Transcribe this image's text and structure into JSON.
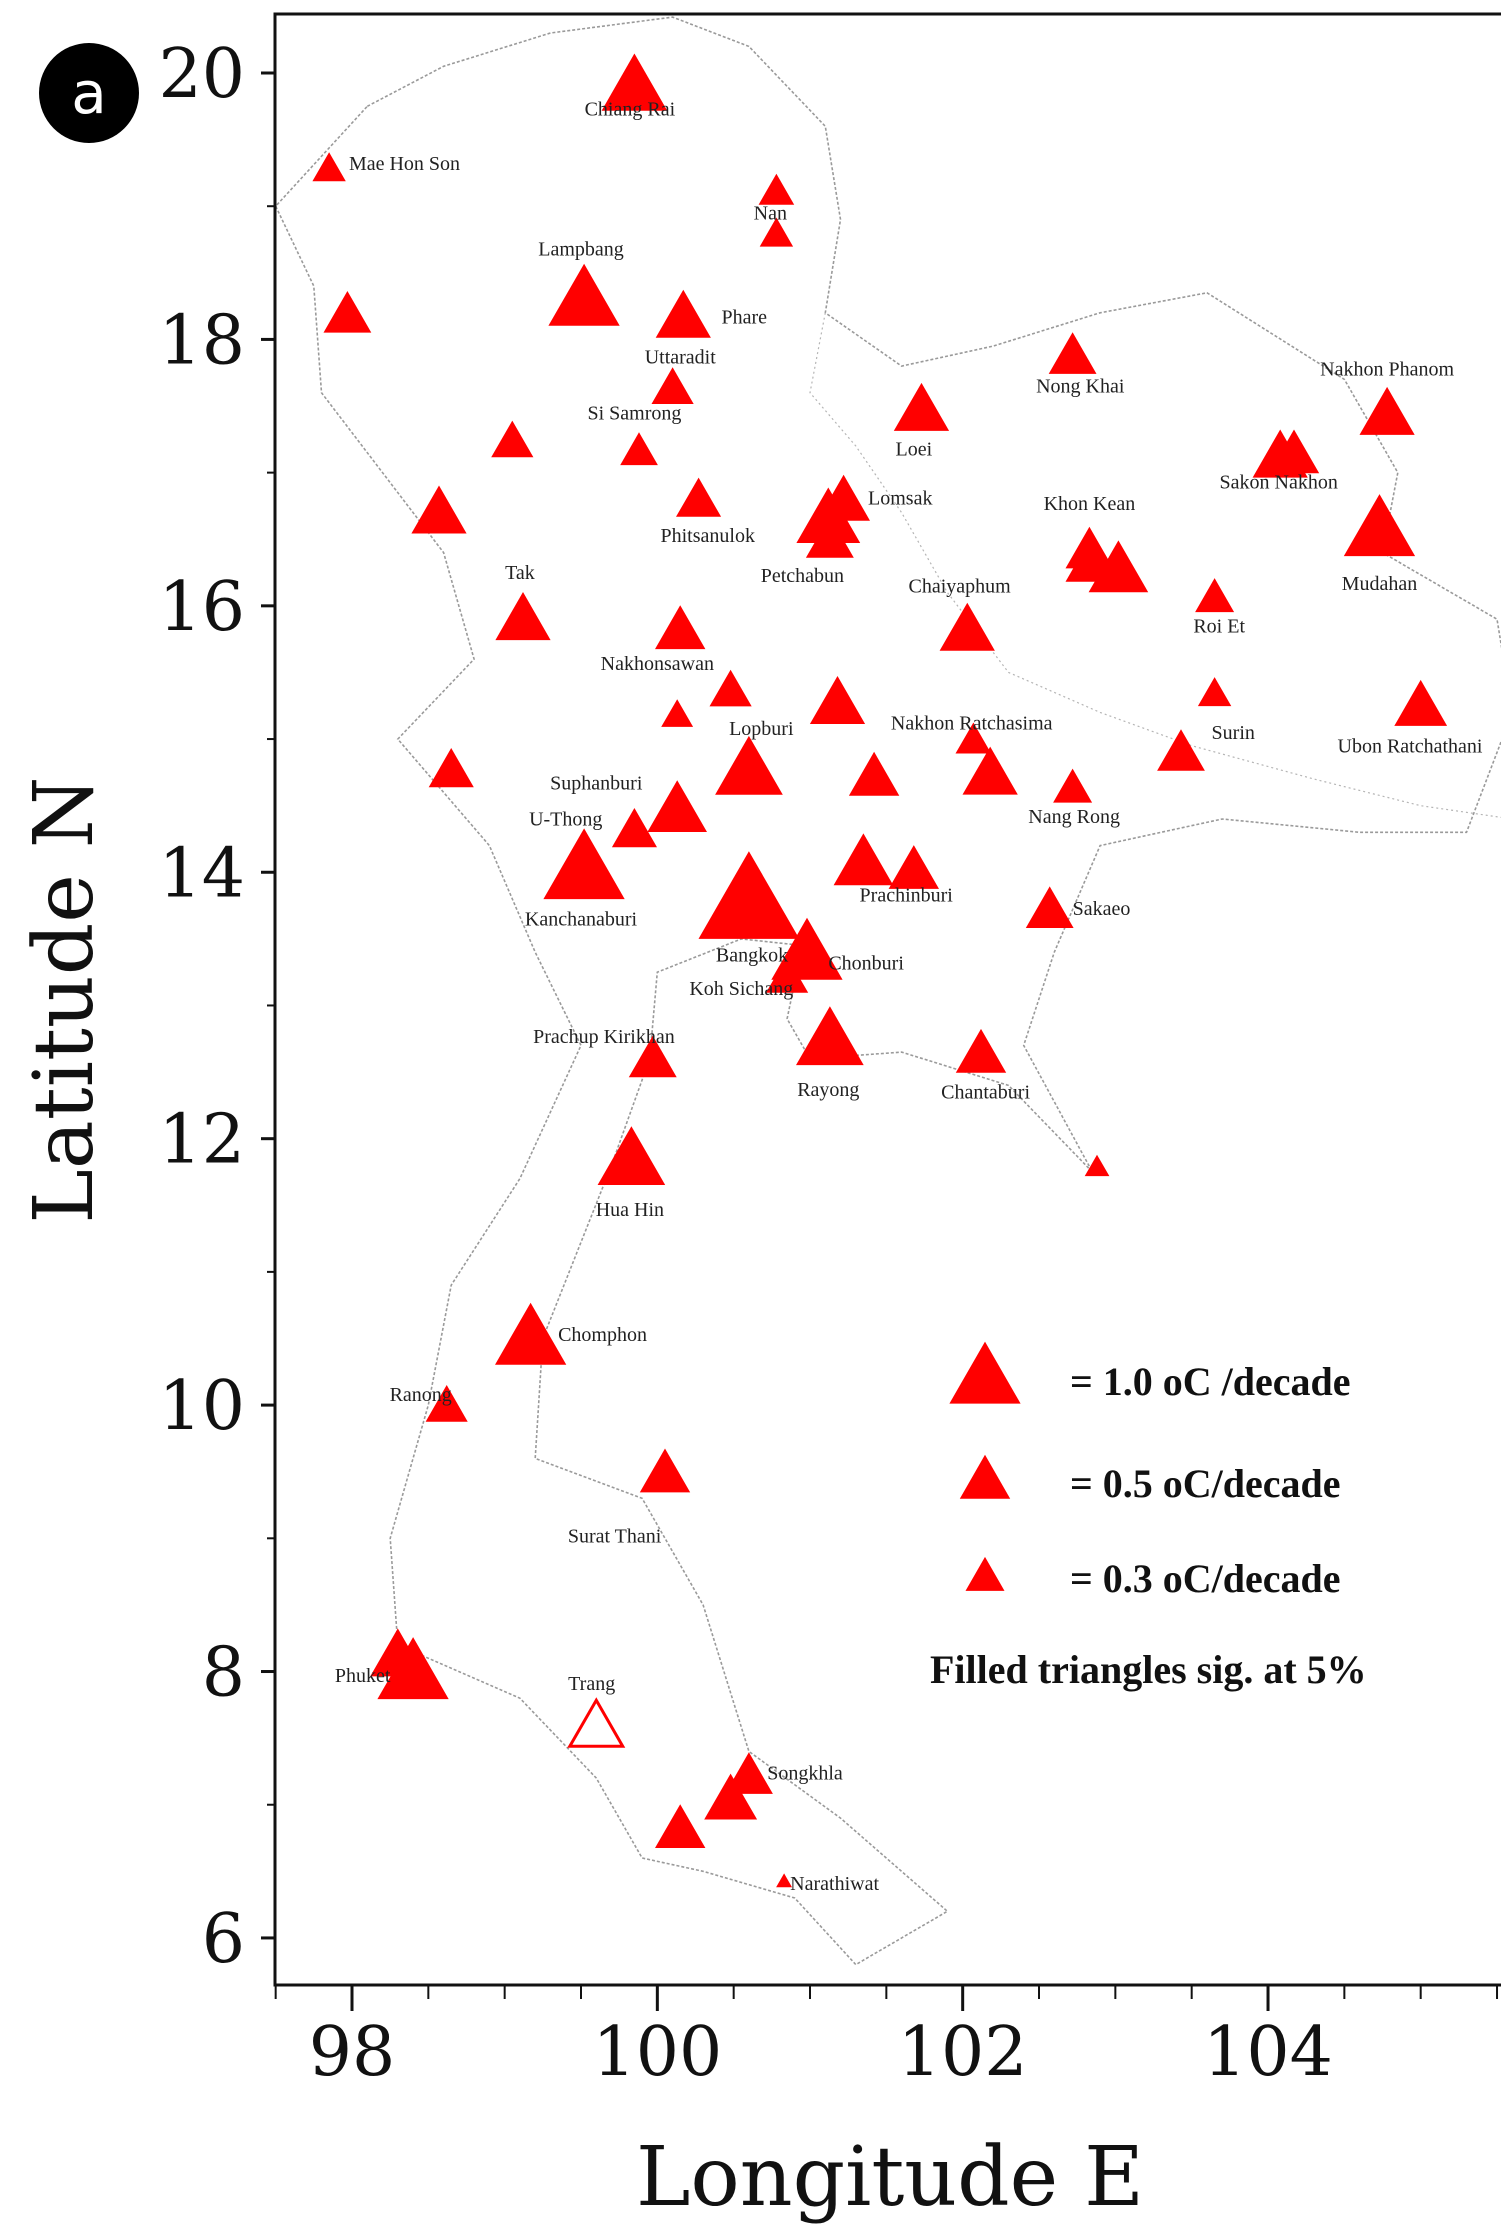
{
  "panel_label": "a",
  "colors": {
    "marker": "#ff0000",
    "coast": "#9a9a9a",
    "axis": "#111111"
  },
  "chart_data": {
    "type": "scatter",
    "subtype": "map_station_trends",
    "xlabel": "Longitude E",
    "ylabel": "Latitude N",
    "xlim": [
      97.4,
      105.8
    ],
    "ylim": [
      5.75,
      20.45
    ],
    "x_ticks": [
      98,
      100,
      102,
      104
    ],
    "y_ticks": [
      6,
      8,
      10,
      12,
      14,
      16,
      18,
      20
    ],
    "x_tick_labels": [
      "98",
      "100",
      "102",
      "104"
    ],
    "y_tick_labels": [
      "6",
      "8",
      "10",
      "12",
      "14",
      "16",
      "18",
      "20"
    ],
    "legend": {
      "placement": "lower-right",
      "entries": [
        {
          "label": "= 1.0 oC /decade",
          "trend": 1.0
        },
        {
          "label": "= 0.5 oC/decade",
          "trend": 0.5
        },
        {
          "label": "= 0.3 oC/decade",
          "trend": 0.3
        }
      ],
      "note": "Filled triangles sig. at 5%"
    },
    "stations": [
      {
        "lon": 99.85,
        "lat": 19.88,
        "trend": 0.85,
        "sig": true
      },
      {
        "lon": 97.85,
        "lat": 19.27,
        "trend": 0.22,
        "sig": true
      },
      {
        "lon": 100.78,
        "lat": 19.1,
        "trend": 0.25,
        "sig": true
      },
      {
        "lon": 100.78,
        "lat": 18.78,
        "trend": 0.22,
        "sig": true
      },
      {
        "lon": 99.52,
        "lat": 18.28,
        "trend": 1.0,
        "sig": true
      },
      {
        "lon": 97.97,
        "lat": 18.17,
        "trend": 0.45,
        "sig": true
      },
      {
        "lon": 100.17,
        "lat": 18.15,
        "trend": 0.6,
        "sig": true
      },
      {
        "lon": 100.1,
        "lat": 17.62,
        "trend": 0.35,
        "sig": true
      },
      {
        "lon": 99.05,
        "lat": 17.22,
        "trend": 0.35,
        "sig": true
      },
      {
        "lon": 99.88,
        "lat": 17.15,
        "trend": 0.28,
        "sig": true
      },
      {
        "lon": 102.72,
        "lat": 17.86,
        "trend": 0.45,
        "sig": true
      },
      {
        "lon": 101.73,
        "lat": 17.45,
        "trend": 0.6,
        "sig": true
      },
      {
        "lon": 104.78,
        "lat": 17.42,
        "trend": 0.6,
        "sig": true
      },
      {
        "lon": 104.08,
        "lat": 17.1,
        "trend": 0.6,
        "sig": true
      },
      {
        "lon": 104.17,
        "lat": 17.12,
        "trend": 0.5,
        "sig": true
      },
      {
        "lon": 98.57,
        "lat": 16.68,
        "trend": 0.6,
        "sig": true
      },
      {
        "lon": 100.27,
        "lat": 16.78,
        "trend": 0.4,
        "sig": true
      },
      {
        "lon": 101.12,
        "lat": 16.63,
        "trend": 0.8,
        "sig": true
      },
      {
        "lon": 101.22,
        "lat": 16.77,
        "trend": 0.55,
        "sig": true
      },
      {
        "lon": 101.13,
        "lat": 16.48,
        "trend": 0.45,
        "sig": true
      },
      {
        "lon": 102.83,
        "lat": 16.4,
        "trend": 0.45,
        "sig": true
      },
      {
        "lon": 102.83,
        "lat": 16.3,
        "trend": 0.45,
        "sig": true
      },
      {
        "lon": 103.02,
        "lat": 16.25,
        "trend": 0.7,
        "sig": true
      },
      {
        "lon": 104.73,
        "lat": 16.55,
        "trend": 1.0,
        "sig": true
      },
      {
        "lon": 103.65,
        "lat": 16.05,
        "trend": 0.3,
        "sig": true
      },
      {
        "lon": 99.12,
        "lat": 15.88,
        "trend": 0.6,
        "sig": true
      },
      {
        "lon": 100.15,
        "lat": 15.8,
        "trend": 0.5,
        "sig": true
      },
      {
        "lon": 102.03,
        "lat": 15.8,
        "trend": 0.6,
        "sig": true
      },
      {
        "lon": 100.48,
        "lat": 15.35,
        "trend": 0.35,
        "sig": true
      },
      {
        "lon": 100.13,
        "lat": 15.17,
        "trend": 0.2,
        "sig": true
      },
      {
        "lon": 101.18,
        "lat": 15.25,
        "trend": 0.6,
        "sig": true
      },
      {
        "lon": 103.65,
        "lat": 15.33,
        "trend": 0.22,
        "sig": true
      },
      {
        "lon": 105.0,
        "lat": 15.23,
        "trend": 0.55,
        "sig": true
      },
      {
        "lon": 102.07,
        "lat": 14.98,
        "trend": 0.25,
        "sig": true
      },
      {
        "lon": 103.43,
        "lat": 14.88,
        "trend": 0.45,
        "sig": true
      },
      {
        "lon": 98.65,
        "lat": 14.75,
        "trend": 0.4,
        "sig": true
      },
      {
        "lon": 100.6,
        "lat": 14.75,
        "trend": 0.9,
        "sig": true
      },
      {
        "lon": 101.42,
        "lat": 14.7,
        "trend": 0.5,
        "sig": true
      },
      {
        "lon": 102.18,
        "lat": 14.72,
        "trend": 0.6,
        "sig": true
      },
      {
        "lon": 102.72,
        "lat": 14.62,
        "trend": 0.3,
        "sig": true
      },
      {
        "lon": 100.13,
        "lat": 14.45,
        "trend": 0.7,
        "sig": true
      },
      {
        "lon": 99.85,
        "lat": 14.3,
        "trend": 0.4,
        "sig": true
      },
      {
        "lon": 99.52,
        "lat": 14.0,
        "trend": 1.3,
        "sig": true
      },
      {
        "lon": 100.6,
        "lat": 13.75,
        "trend": 2.0,
        "sig": true
      },
      {
        "lon": 101.35,
        "lat": 14.05,
        "trend": 0.7,
        "sig": true
      },
      {
        "lon": 101.68,
        "lat": 14.0,
        "trend": 0.5,
        "sig": true
      },
      {
        "lon": 102.57,
        "lat": 13.7,
        "trend": 0.45,
        "sig": true
      },
      {
        "lon": 100.98,
        "lat": 13.37,
        "trend": 1.0,
        "sig": true
      },
      {
        "lon": 100.85,
        "lat": 13.2,
        "trend": 0.35,
        "sig": true
      },
      {
        "lon": 101.13,
        "lat": 12.72,
        "trend": 0.9,
        "sig": true
      },
      {
        "lon": 102.12,
        "lat": 12.62,
        "trend": 0.5,
        "sig": true
      },
      {
        "lon": 99.97,
        "lat": 12.58,
        "trend": 0.45,
        "sig": true
      },
      {
        "lon": 102.88,
        "lat": 11.78,
        "trend": 0.12,
        "sig": true
      },
      {
        "lon": 99.83,
        "lat": 11.82,
        "trend": 0.9,
        "sig": true
      },
      {
        "lon": 99.17,
        "lat": 10.48,
        "trend": 1.0,
        "sig": true
      },
      {
        "lon": 98.62,
        "lat": 9.98,
        "trend": 0.35,
        "sig": true
      },
      {
        "lon": 100.05,
        "lat": 9.47,
        "trend": 0.5,
        "sig": true
      },
      {
        "lon": 98.3,
        "lat": 8.1,
        "trend": 0.6,
        "sig": true
      },
      {
        "lon": 98.4,
        "lat": 7.97,
        "trend": 1.0,
        "sig": true
      },
      {
        "lon": 99.6,
        "lat": 7.57,
        "trend": 0.55,
        "sig": false
      },
      {
        "lon": 100.6,
        "lat": 7.2,
        "trend": 0.45,
        "sig": true
      },
      {
        "lon": 100.48,
        "lat": 7.02,
        "trend": 0.55,
        "sig": true
      },
      {
        "lon": 100.15,
        "lat": 6.8,
        "trend": 0.5,
        "sig": true
      },
      {
        "lon": 100.83,
        "lat": 6.42,
        "trend": 0.05,
        "sig": true
      }
    ],
    "labels": [
      {
        "text": "Chiang Rai",
        "lon": 99.82,
        "lat": 19.68,
        "anchor": "middle"
      },
      {
        "text": "Mae Hon Son",
        "lon": 97.98,
        "lat": 19.27,
        "anchor": "start"
      },
      {
        "text": "Nan",
        "lon": 100.74,
        "lat": 18.9,
        "anchor": "middle"
      },
      {
        "text": "Lampbang",
        "lon": 99.5,
        "lat": 18.63,
        "anchor": "middle"
      },
      {
        "text": "Phare",
        "lon": 100.42,
        "lat": 18.12,
        "anchor": "start"
      },
      {
        "text": "Uttaradit",
        "lon": 100.15,
        "lat": 17.82,
        "anchor": "middle"
      },
      {
        "text": "Nong Khai",
        "lon": 102.77,
        "lat": 17.6,
        "anchor": "middle"
      },
      {
        "text": "Nakhon Phanom",
        "lon": 104.78,
        "lat": 17.73,
        "anchor": "middle"
      },
      {
        "text": "Si Samrong",
        "lon": 99.85,
        "lat": 17.4,
        "anchor": "middle"
      },
      {
        "text": "Loei",
        "lon": 101.68,
        "lat": 17.13,
        "anchor": "middle"
      },
      {
        "text": "Sakon Nakhon",
        "lon": 104.07,
        "lat": 16.88,
        "anchor": "middle"
      },
      {
        "text": "Lomsak",
        "lon": 101.38,
        "lat": 16.76,
        "anchor": "start"
      },
      {
        "text": "Khon Kean",
        "lon": 102.83,
        "lat": 16.72,
        "anchor": "middle"
      },
      {
        "text": "Phitsanulok",
        "lon": 100.33,
        "lat": 16.48,
        "anchor": "middle"
      },
      {
        "text": "Tak",
        "lon": 99.1,
        "lat": 16.2,
        "anchor": "middle"
      },
      {
        "text": "Petchabun",
        "lon": 100.95,
        "lat": 16.18,
        "anchor": "middle"
      },
      {
        "text": "Chaiyaphum",
        "lon": 101.98,
        "lat": 16.1,
        "anchor": "middle"
      },
      {
        "text": "Mudahan",
        "lon": 104.73,
        "lat": 16.12,
        "anchor": "middle"
      },
      {
        "text": "Roi Et",
        "lon": 103.68,
        "lat": 15.8,
        "anchor": "middle"
      },
      {
        "text": "Nakhonsawan",
        "lon": 100.0,
        "lat": 15.52,
        "anchor": "middle"
      },
      {
        "text": "Nakhon Ratchasima",
        "lon": 101.53,
        "lat": 15.07,
        "anchor": "start"
      },
      {
        "text": "Lopburi",
        "lon": 100.47,
        "lat": 15.03,
        "anchor": "start"
      },
      {
        "text": "Surin",
        "lon": 103.63,
        "lat": 15.0,
        "anchor": "start"
      },
      {
        "text": "Ubon Ratchathani",
        "lon": 104.93,
        "lat": 14.9,
        "anchor": "middle"
      },
      {
        "text": "Suphanburi",
        "lon": 99.6,
        "lat": 14.62,
        "anchor": "middle"
      },
      {
        "text": "Nang Rong",
        "lon": 102.73,
        "lat": 14.37,
        "anchor": "middle"
      },
      {
        "text": "U-Thong",
        "lon": 99.4,
        "lat": 14.35,
        "anchor": "middle"
      },
      {
        "text": "Prachinburi",
        "lon": 101.63,
        "lat": 13.78,
        "anchor": "middle"
      },
      {
        "text": "Sakaeo",
        "lon": 102.72,
        "lat": 13.68,
        "anchor": "start"
      },
      {
        "text": "Kanchanaburi",
        "lon": 99.5,
        "lat": 13.6,
        "anchor": "middle"
      },
      {
        "text": "Bangkok",
        "lon": 100.62,
        "lat": 13.33,
        "anchor": "middle"
      },
      {
        "text": "Chonburi",
        "lon": 101.12,
        "lat": 13.27,
        "anchor": "start"
      },
      {
        "text": "Koh Sichang",
        "lon": 100.55,
        "lat": 13.08,
        "anchor": "middle"
      },
      {
        "text": "Prachup Kirikhan",
        "lon": 99.65,
        "lat": 12.72,
        "anchor": "middle"
      },
      {
        "text": "Rayong",
        "lon": 101.12,
        "lat": 12.32,
        "anchor": "middle"
      },
      {
        "text": "Chantaburi",
        "lon": 102.15,
        "lat": 12.3,
        "anchor": "middle"
      },
      {
        "text": "Hua Hin",
        "lon": 99.82,
        "lat": 11.42,
        "anchor": "middle"
      },
      {
        "text": "Chomphon",
        "lon": 99.35,
        "lat": 10.48,
        "anchor": "start"
      },
      {
        "text": "Ranong",
        "lon": 98.45,
        "lat": 10.03,
        "anchor": "middle"
      },
      {
        "text": "Surat Thani",
        "lon": 99.72,
        "lat": 8.97,
        "anchor": "middle"
      },
      {
        "text": "Phuket",
        "lon": 98.07,
        "lat": 7.92,
        "anchor": "middle"
      },
      {
        "text": "Trang",
        "lon": 99.57,
        "lat": 7.86,
        "anchor": "middle"
      },
      {
        "text": "Songkhla",
        "lon": 100.72,
        "lat": 7.19,
        "anchor": "start"
      },
      {
        "text": "Narathiwat",
        "lon": 100.87,
        "lat": 6.36,
        "anchor": "start"
      }
    ]
  }
}
